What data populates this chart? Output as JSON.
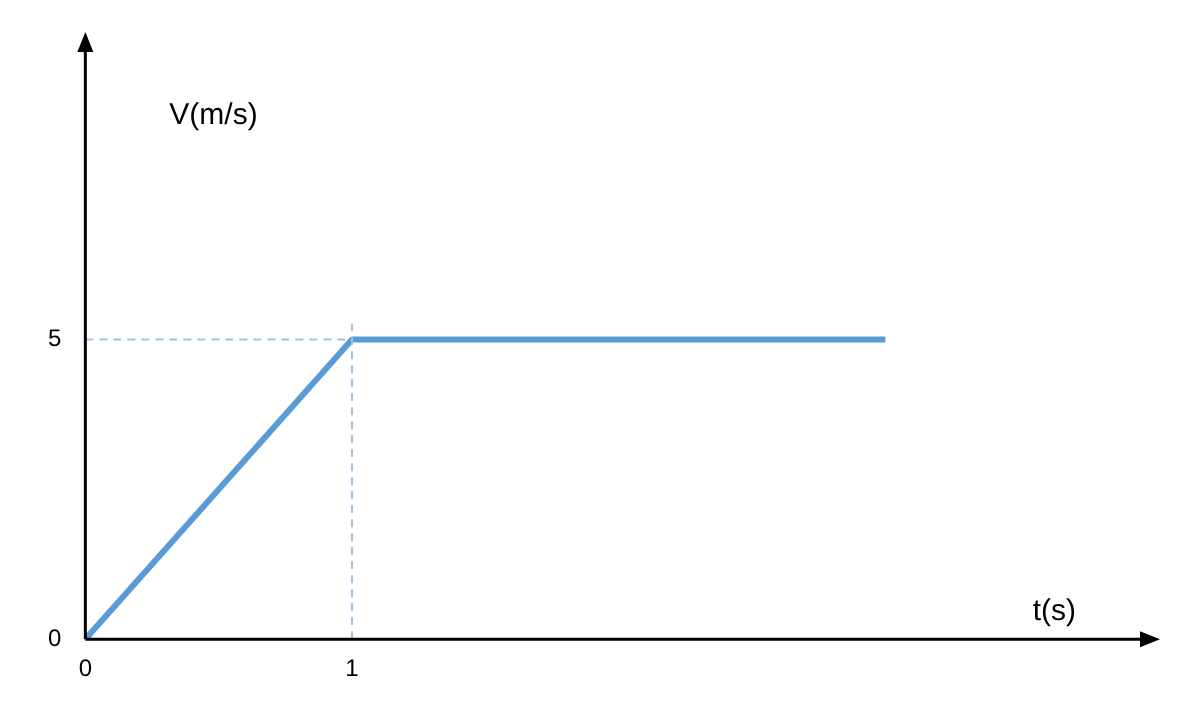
{
  "chart_data": {
    "type": "line",
    "xlabel": "t(s)",
    "ylabel": "V(m/s)",
    "x": [
      0,
      1,
      3
    ],
    "series": [
      {
        "color": "#5b9bd5",
        "values": [
          0,
          5,
          5
        ]
      }
    ],
    "xlim": [
      0,
      4
    ],
    "ylim": [
      0,
      10
    ],
    "xticks": [
      0,
      1
    ],
    "yticks": [
      0,
      5
    ],
    "grid": false,
    "legend": false,
    "marker": "none",
    "line_style": "solid",
    "ref_lines": [
      {
        "axis": "x",
        "value": 1,
        "color": "#9dc3e6",
        "line_style": "dashed"
      },
      {
        "axis": "y",
        "value": 5,
        "color": "#9dc3e6",
        "line_style": "dashed"
      }
    ]
  }
}
